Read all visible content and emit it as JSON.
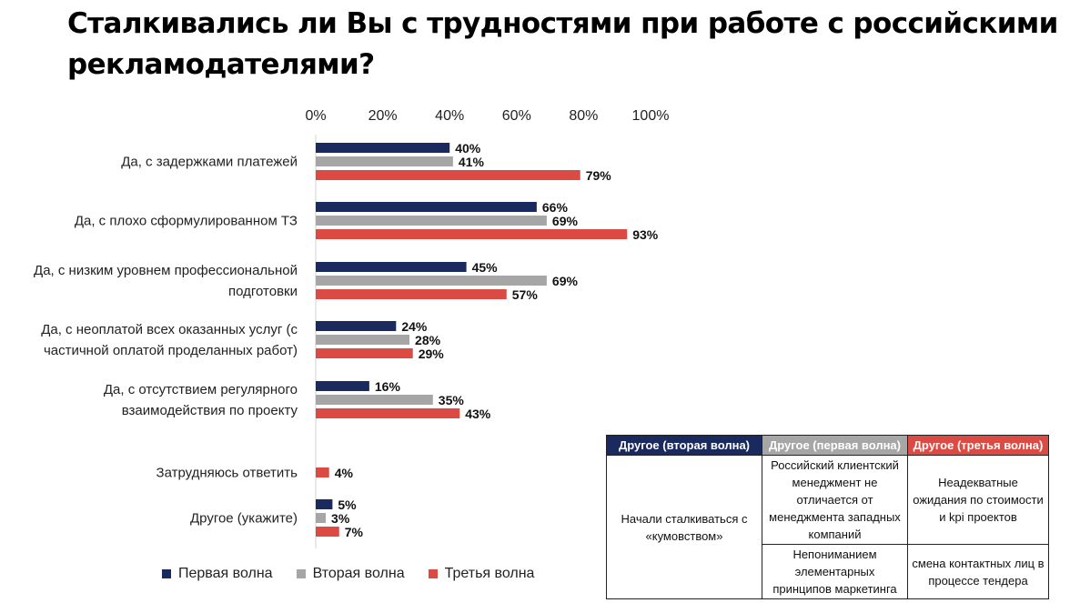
{
  "title": "Сталкивались ли Вы с трудностями при работе с российскими рекламодателями?",
  "chart_data": {
    "type": "bar",
    "orientation": "horizontal",
    "xlim": [
      0,
      100
    ],
    "x_ticks": [
      "0%",
      "20%",
      "40%",
      "60%",
      "80%",
      "100%"
    ],
    "x_tick_values": [
      0,
      20,
      40,
      60,
      80,
      100
    ],
    "axis_position": "top",
    "grid": false,
    "legend_position": "bottom",
    "categories": [
      [
        "Да, с задержками платежей"
      ],
      [
        "Да, с плохо сформулированном ТЗ"
      ],
      [
        "Да, с низким уровнем профессиональной",
        "подготовки"
      ],
      [
        "Да, с неоплатой всех оказанных услуг (с",
        "частичной оплатой проделанных работ)"
      ],
      [
        "Да, с отсутствием регулярного",
        "взаимодействия по проекту"
      ],
      [
        "Затрудняюсь ответить"
      ],
      [
        "Другое (укажите)"
      ]
    ],
    "series": [
      {
        "name": "Первая волна",
        "color": "#1b2a5e",
        "values": [
          40,
          66,
          45,
          24,
          16,
          null,
          5
        ]
      },
      {
        "name": "Вторая волна",
        "color": "#a6a6a6",
        "values": [
          41,
          69,
          69,
          28,
          35,
          null,
          3
        ]
      },
      {
        "name": "Третья волна",
        "color": "#dc4b43",
        "values": [
          79,
          93,
          57,
          29,
          43,
          4,
          7
        ]
      }
    ],
    "value_suffix": "%"
  },
  "other_table": {
    "headers": [
      {
        "label": "Другое (вторая волна)",
        "color": "#1b2a5e"
      },
      {
        "label": "Другое (первая волна)",
        "color": "#a6a6a6"
      },
      {
        "label": "Другое (третья волна)",
        "color": "#dc4b43"
      }
    ],
    "second_wave": "Начали сталкиваться с «кумовством»",
    "first_wave": [
      "Российский клиентский менеджмент не отличается от менеджмента западных компаний",
      "Непониманием элементарных принципов маркетинга"
    ],
    "third_wave": [
      "Неадекватные ожидания по стоимости и kpi проектов",
      "смена контактных лиц в процессе тендера"
    ]
  }
}
